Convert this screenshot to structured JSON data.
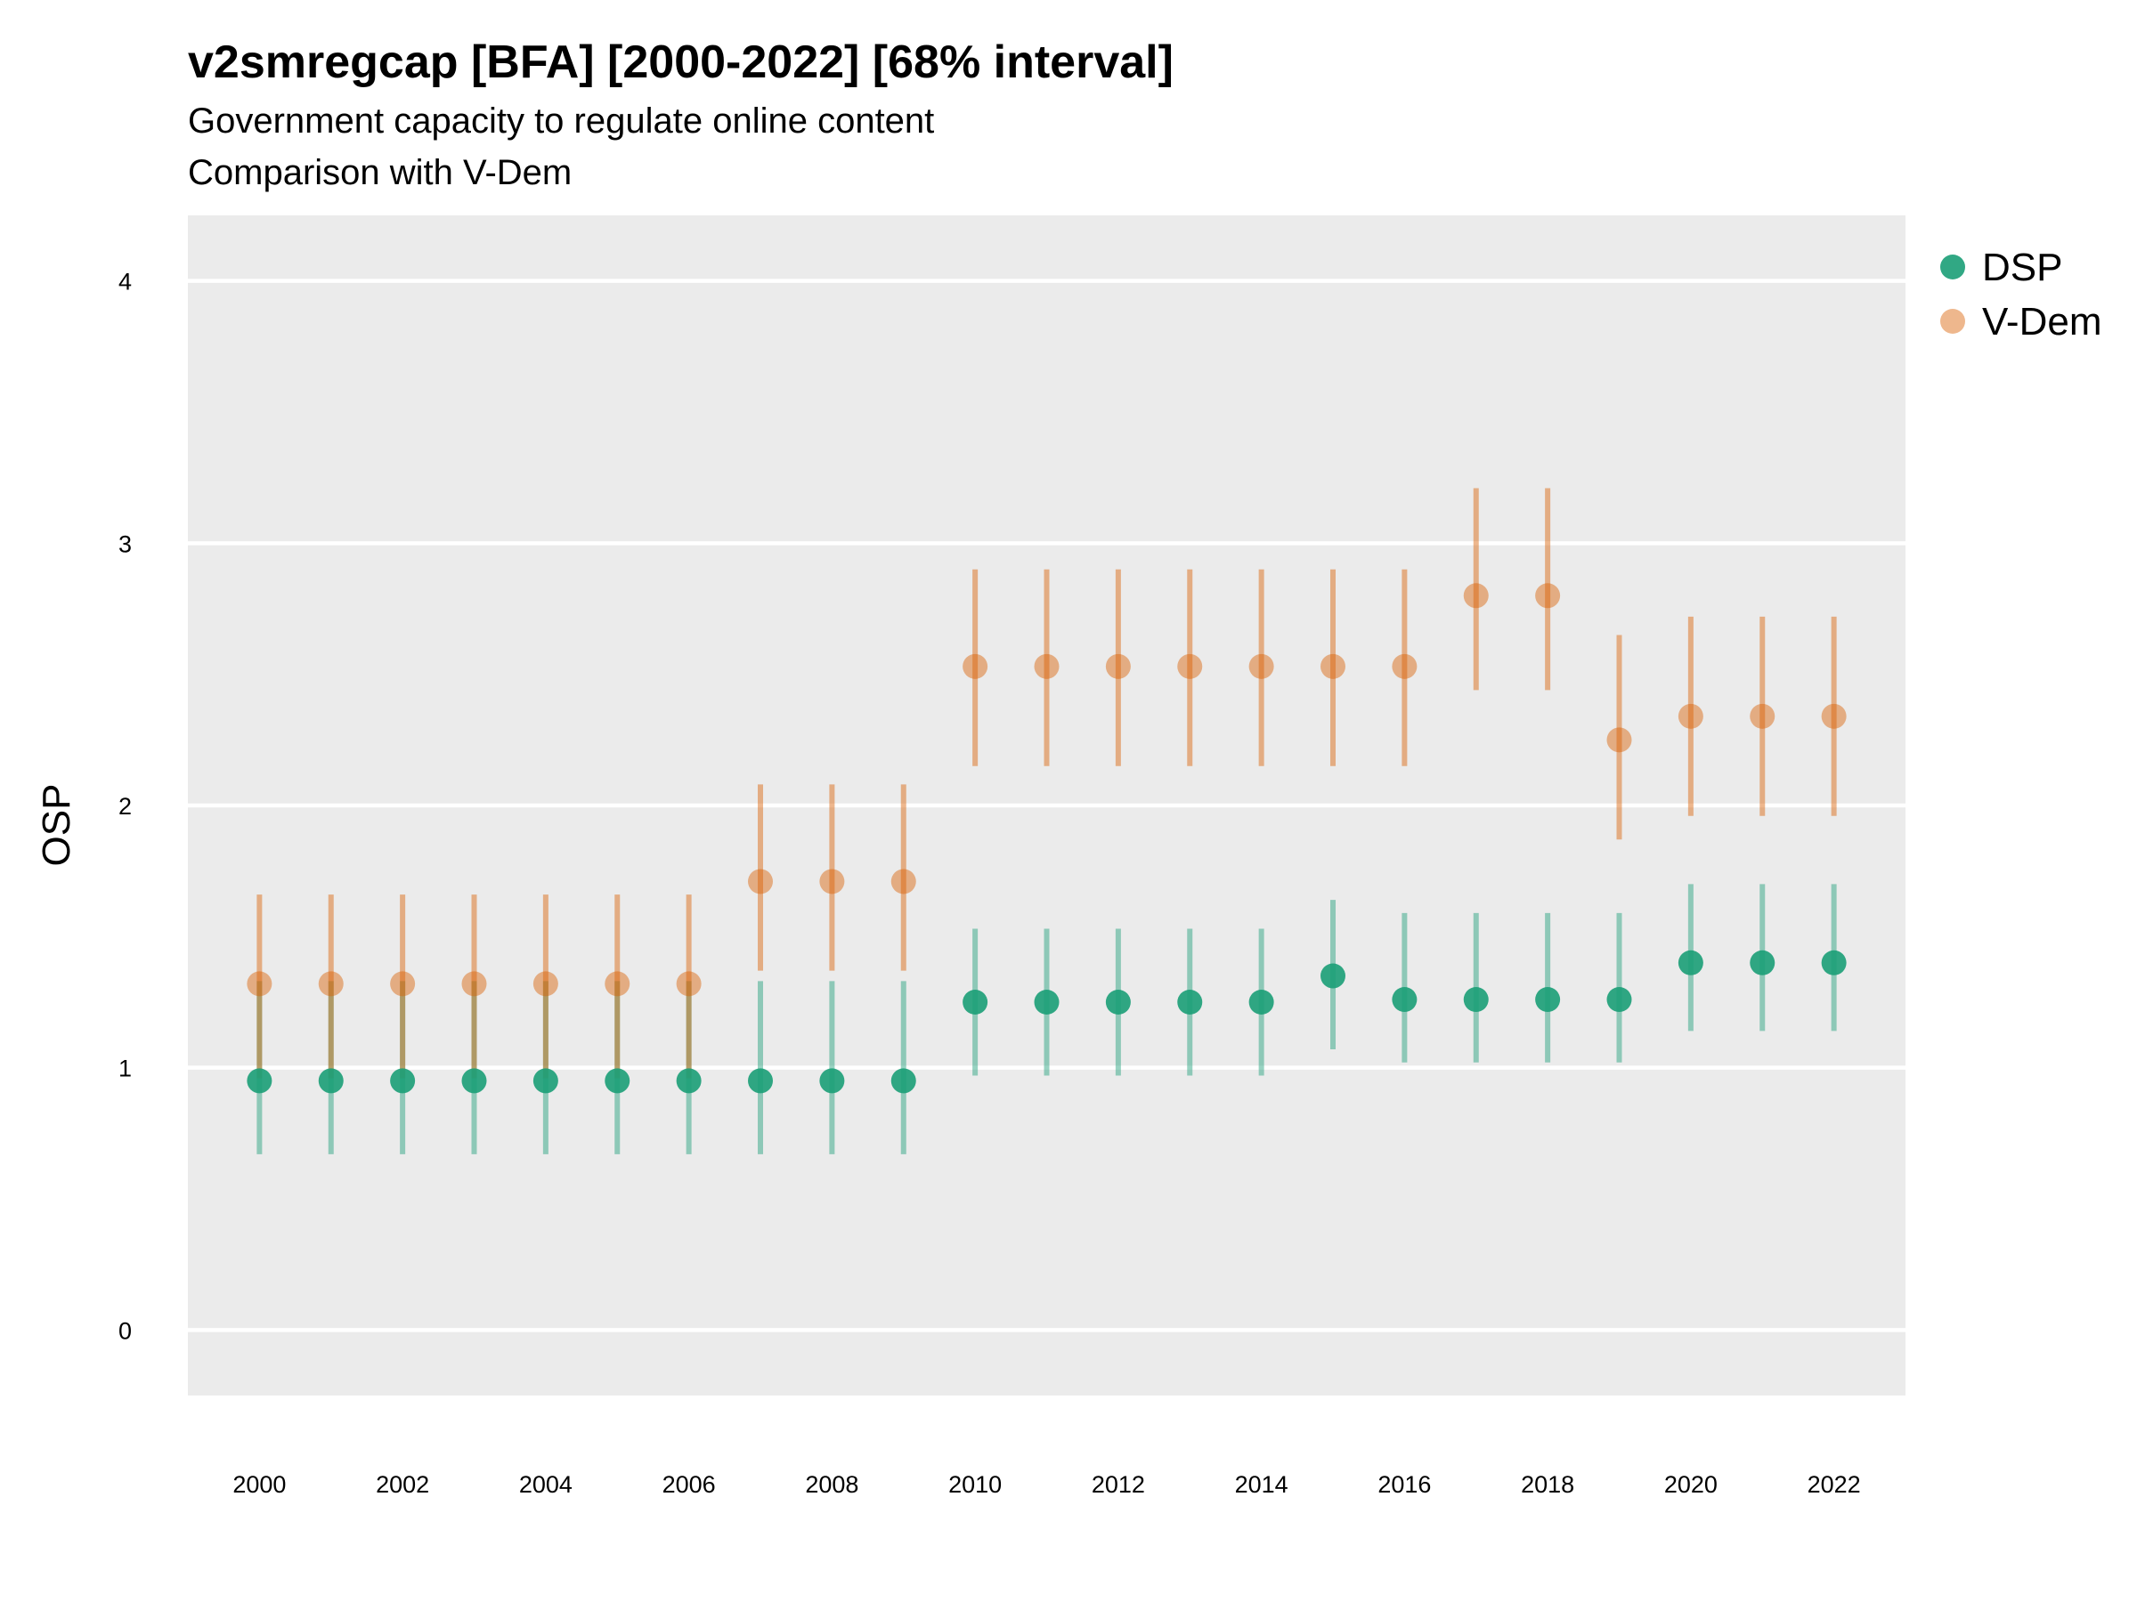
{
  "header": {
    "title": "v2smregcap [BFA] [2000-2022] [68% interval]",
    "subtitle1": "Government capacity to regulate online content",
    "subtitle2": "Comparison with V-Dem"
  },
  "colors": {
    "panel_bg": "#ebebeb",
    "grid": "#ffffff",
    "dsp": "#1b9e77",
    "vdem": "#d95f02"
  },
  "chart_data": {
    "type": "scatter",
    "title": "v2smregcap [BFA] [2000-2022] [68% interval]",
    "subtitle": "Government capacity to regulate online content / Comparison with V-Dem",
    "xlabel": "",
    "ylabel": "OSP",
    "ylim": [
      -0.25,
      4.25
    ],
    "yticks": [
      0,
      1,
      2,
      3,
      4
    ],
    "xlim": [
      1999,
      2023
    ],
    "xticks": [
      2000,
      2002,
      2004,
      2006,
      2008,
      2010,
      2012,
      2014,
      2016,
      2018,
      2020,
      2022
    ],
    "grid": true,
    "legend_position": "right",
    "x": [
      2000,
      2001,
      2002,
      2003,
      2004,
      2005,
      2006,
      2007,
      2008,
      2009,
      2010,
      2011,
      2012,
      2013,
      2014,
      2015,
      2016,
      2017,
      2018,
      2019,
      2020,
      2021,
      2022
    ],
    "series": [
      {
        "name": "DSP",
        "color": "#1b9e77",
        "values": [
          0.95,
          0.95,
          0.95,
          0.95,
          0.95,
          0.95,
          0.95,
          0.95,
          0.95,
          0.95,
          1.25,
          1.25,
          1.25,
          1.25,
          1.25,
          1.35,
          1.26,
          1.26,
          1.26,
          1.26,
          1.4,
          1.4,
          1.4
        ],
        "lower": [
          0.67,
          0.67,
          0.67,
          0.67,
          0.67,
          0.67,
          0.67,
          0.67,
          0.67,
          0.67,
          0.97,
          0.97,
          0.97,
          0.97,
          0.97,
          1.07,
          1.02,
          1.02,
          1.02,
          1.02,
          1.14,
          1.14,
          1.14
        ],
        "upper": [
          1.33,
          1.33,
          1.33,
          1.33,
          1.33,
          1.33,
          1.33,
          1.33,
          1.33,
          1.33,
          1.53,
          1.53,
          1.53,
          1.53,
          1.53,
          1.64,
          1.59,
          1.59,
          1.59,
          1.59,
          1.7,
          1.7,
          1.7
        ]
      },
      {
        "name": "V-Dem",
        "color": "#d95f02",
        "values": [
          1.32,
          1.32,
          1.32,
          1.32,
          1.32,
          1.32,
          1.32,
          1.71,
          1.71,
          1.71,
          2.53,
          2.53,
          2.53,
          2.53,
          2.53,
          2.53,
          2.53,
          2.8,
          2.8,
          2.25,
          2.34,
          2.34,
          2.34
        ],
        "lower": [
          0.96,
          0.96,
          0.96,
          0.96,
          0.96,
          0.96,
          0.96,
          1.37,
          1.37,
          1.37,
          2.15,
          2.15,
          2.15,
          2.15,
          2.15,
          2.15,
          2.15,
          2.44,
          2.44,
          1.87,
          1.96,
          1.96,
          1.96
        ],
        "upper": [
          1.66,
          1.66,
          1.66,
          1.66,
          1.66,
          1.66,
          1.66,
          2.08,
          2.08,
          2.08,
          2.9,
          2.9,
          2.9,
          2.9,
          2.9,
          2.9,
          2.9,
          3.21,
          3.21,
          2.65,
          2.72,
          2.72,
          2.72
        ]
      }
    ]
  }
}
